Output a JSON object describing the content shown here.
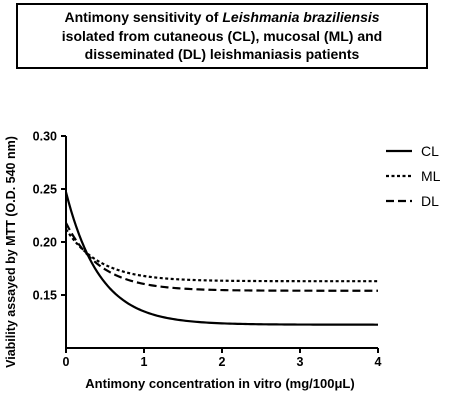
{
  "chart_data": {
    "type": "line",
    "title": {
      "line1_pre": "Antimony sensitivity of ",
      "line1_italic": "Leishmania braziliensis",
      "line2": "isolated from cutaneous (CL), mucosal (ML) and",
      "line3": "disseminated (DL) leishmaniasis patients"
    },
    "xlabel": "Antimony concentration in vitro (mg/100μL)",
    "ylabel": "Viability assayed by MTT (O.D. 540 nm)",
    "xlim": [
      0,
      4
    ],
    "ylim": [
      0.1,
      0.3
    ],
    "xticks": [
      "0",
      "1",
      "2",
      "3",
      "4"
    ],
    "yticks": [
      "0.15",
      "0.20",
      "0.25",
      "0.30"
    ],
    "grid": false,
    "legend_position": "top-right",
    "series": [
      {
        "name": "CL",
        "style": "solid",
        "color": "#000000",
        "y0": 0.247,
        "plateau": 0.122,
        "k": 2.3
      },
      {
        "name": "ML",
        "style": "dotted",
        "color": "#000000",
        "y0": 0.212,
        "plateau": 0.163,
        "k": 2.3
      },
      {
        "name": "DL",
        "style": "dashed",
        "color": "#000000",
        "y0": 0.218,
        "plateau": 0.154,
        "k": 2.3
      }
    ]
  }
}
